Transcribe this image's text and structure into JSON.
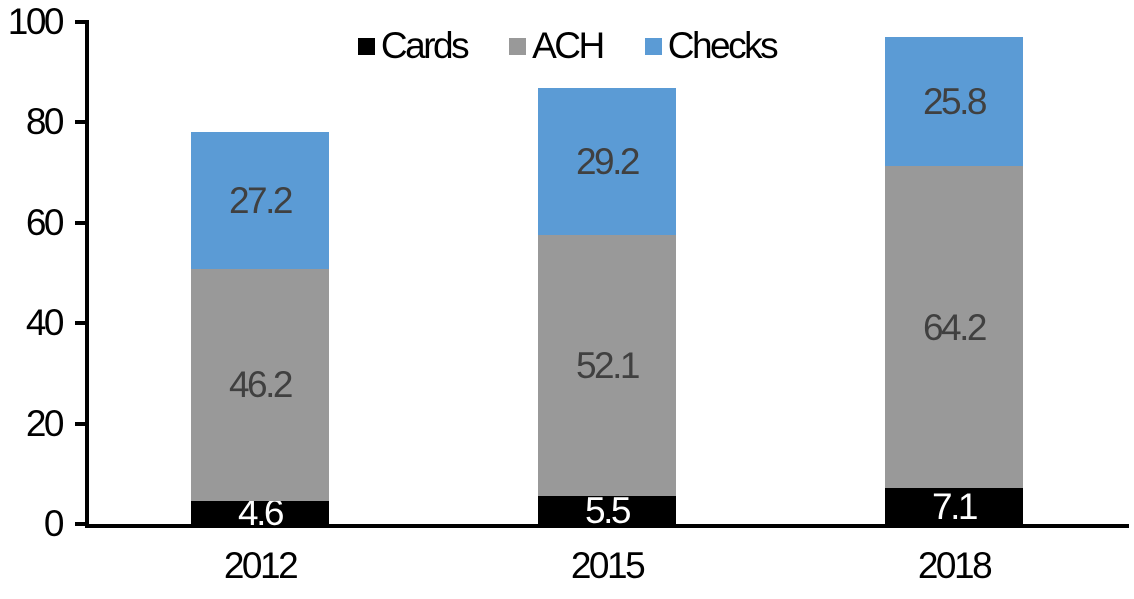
{
  "chart_data": {
    "type": "bar",
    "stacked": true,
    "categories": [
      "2012",
      "2015",
      "2018"
    ],
    "series": [
      {
        "name": "Cards",
        "color": "#000000",
        "label_color": "#ffffff",
        "values": [
          4.6,
          5.5,
          7.1
        ]
      },
      {
        "name": "ACH",
        "color": "#999999",
        "label_color": "#404040",
        "values": [
          46.2,
          52.1,
          64.2
        ]
      },
      {
        "name": "Checks",
        "color": "#5B9BD5",
        "label_color": "#404040",
        "values": [
          27.2,
          29.2,
          25.8
        ]
      }
    ],
    "ylim": [
      0,
      100
    ],
    "yticks": [
      0,
      20,
      40,
      60,
      80,
      100
    ],
    "grid": false,
    "legend_position": "top",
    "legend_labels": [
      "Cards",
      "ACH",
      "Checks"
    ],
    "data_label_decimals": 1,
    "axis_color": "#000000",
    "background_color": "#ffffff"
  }
}
